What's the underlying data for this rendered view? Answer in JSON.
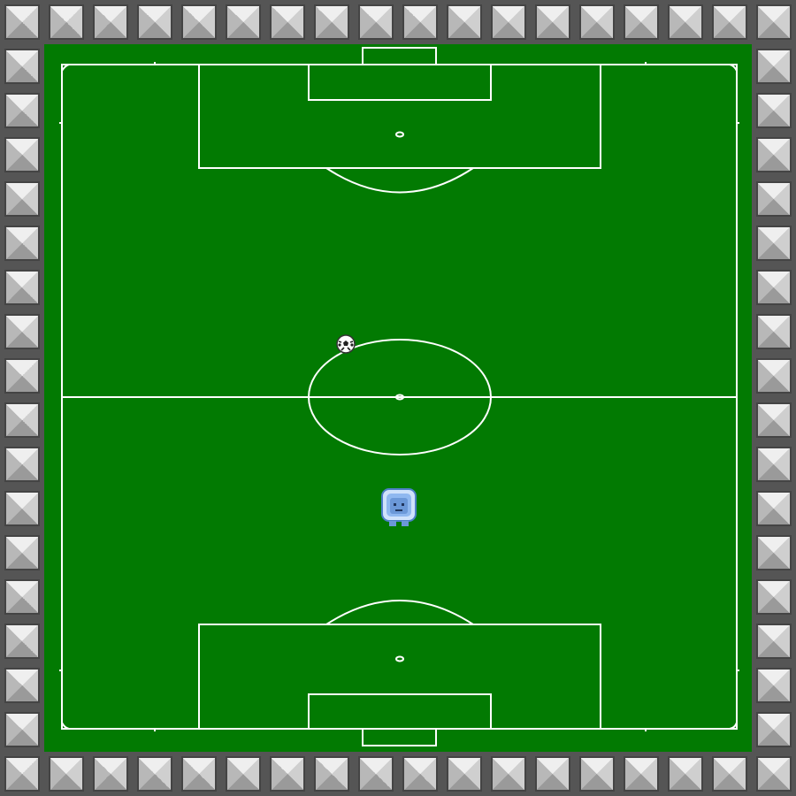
{
  "game": {
    "colors": {
      "grass": "#027a02",
      "lines": "#ffffff",
      "wall_light": "#e8e8e8",
      "wall_dark": "#4a4a4a",
      "player": "#8fb8f0"
    },
    "entities": {
      "ball_icon": "soccer-ball-icon",
      "player_icon": "blue-robot-player-icon"
    }
  }
}
